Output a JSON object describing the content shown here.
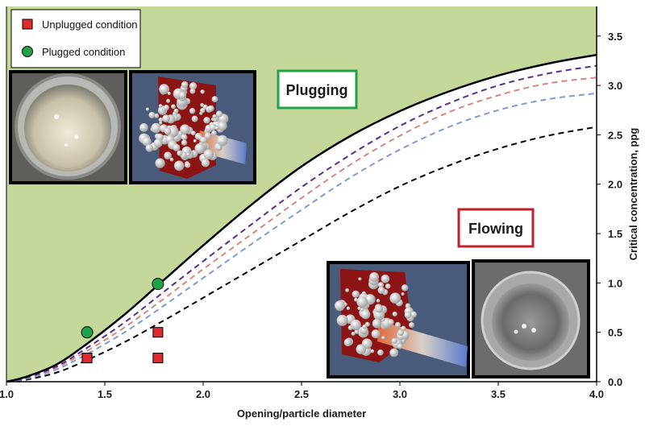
{
  "chart_data": {
    "type": "line",
    "title": "",
    "xlabel": "Opening/particle diameter",
    "ylabel": "Critical concentration, ppg",
    "xlim": [
      1.0,
      4.0
    ],
    "ylim": [
      0.0,
      3.8
    ],
    "x_ticks": [
      "1.0",
      "1.5",
      "2.0",
      "2.5",
      "3.0",
      "3.5",
      "4.0"
    ],
    "y_ticks": [
      "0.0",
      "0.5",
      "1.0",
      "1.5",
      "2.0",
      "2.5",
      "3.0",
      "3.5"
    ],
    "x_tick_values": [
      1.0,
      1.5,
      2.0,
      2.5,
      3.0,
      3.5,
      4.0
    ],
    "y_tick_values": [
      0.0,
      0.5,
      1.0,
      1.5,
      2.0,
      2.5,
      3.0,
      3.5
    ],
    "y_axis_side": "right",
    "grid": false,
    "colors": {
      "plug_region": "#c5d89a",
      "boundary": "#000000",
      "purple": "#5b2a91",
      "salmon": "#d9857a",
      "blue": "#7c9cd1",
      "black_dashed": "#000000",
      "square": "#e02b2b",
      "circle": "#1fa348",
      "plug_box": "#22a34a",
      "flow_box": "#c0202a"
    },
    "series": [
      {
        "style": "solid",
        "color": "#000000",
        "x": [
          1.0,
          1.1,
          1.25,
          1.4,
          1.6,
          1.8,
          2.0,
          2.25,
          2.5,
          2.75,
          3.0,
          3.25,
          3.5,
          3.75,
          4.0
        ],
        "y": [
          0.0,
          0.05,
          0.17,
          0.37,
          0.68,
          1.03,
          1.38,
          1.8,
          2.18,
          2.49,
          2.74,
          2.94,
          3.1,
          3.22,
          3.31
        ]
      },
      {
        "style": "dashed",
        "color": "#5b2a91",
        "x": [
          1.0,
          1.1,
          1.25,
          1.4,
          1.6,
          1.8,
          2.0,
          2.25,
          2.5,
          2.75,
          3.0,
          3.25,
          3.5,
          3.75,
          4.0
        ],
        "y": [
          0.0,
          0.04,
          0.15,
          0.33,
          0.6,
          0.91,
          1.22,
          1.6,
          1.97,
          2.3,
          2.59,
          2.82,
          3.0,
          3.12,
          3.2
        ]
      },
      {
        "style": "dashed",
        "color": "#d9857a",
        "x": [
          1.0,
          1.1,
          1.25,
          1.4,
          1.6,
          1.8,
          2.0,
          2.25,
          2.5,
          2.75,
          3.0,
          3.25,
          3.5,
          3.75,
          4.0
        ],
        "y": [
          0.0,
          0.04,
          0.14,
          0.3,
          0.55,
          0.84,
          1.14,
          1.5,
          1.86,
          2.2,
          2.49,
          2.73,
          2.9,
          3.02,
          3.08
        ]
      },
      {
        "style": "dashed",
        "color": "#7c9cd1",
        "x": [
          1.0,
          1.1,
          1.25,
          1.4,
          1.6,
          1.8,
          2.0,
          2.25,
          2.5,
          2.75,
          3.0,
          3.25,
          3.5,
          3.75,
          4.0
        ],
        "y": [
          0.0,
          0.03,
          0.12,
          0.27,
          0.5,
          0.77,
          1.05,
          1.4,
          1.74,
          2.07,
          2.35,
          2.58,
          2.75,
          2.86,
          2.92
        ]
      },
      {
        "style": "dashed",
        "color": "#000000",
        "x": [
          1.0,
          1.1,
          1.25,
          1.4,
          1.6,
          1.8,
          2.0,
          2.25,
          2.5,
          2.75,
          3.0,
          3.25,
          3.5,
          3.75,
          4.0
        ],
        "y": [
          0.0,
          0.02,
          0.09,
          0.21,
          0.4,
          0.62,
          0.85,
          1.14,
          1.43,
          1.72,
          1.98,
          2.19,
          2.36,
          2.49,
          2.58
        ]
      }
    ],
    "points": [
      {
        "marker": "square",
        "name": "Unplugged condition",
        "x": [
          1.41,
          1.41,
          1.77,
          1.77
        ],
        "y": [
          0.24,
          0.24,
          0.5,
          0.24
        ]
      },
      {
        "marker": "circle",
        "name": "Plugged condition",
        "x": [
          1.41,
          1.77
        ],
        "y": [
          0.5,
          0.99
        ]
      }
    ],
    "legend": {
      "position": "top-left",
      "items": [
        {
          "label": "Unplugged condition",
          "marker": "square"
        },
        {
          "label": "Plugged condition",
          "marker": "circle"
        }
      ]
    },
    "annotations": {
      "plugging": "Plugging",
      "flowing": "Flowing"
    }
  }
}
